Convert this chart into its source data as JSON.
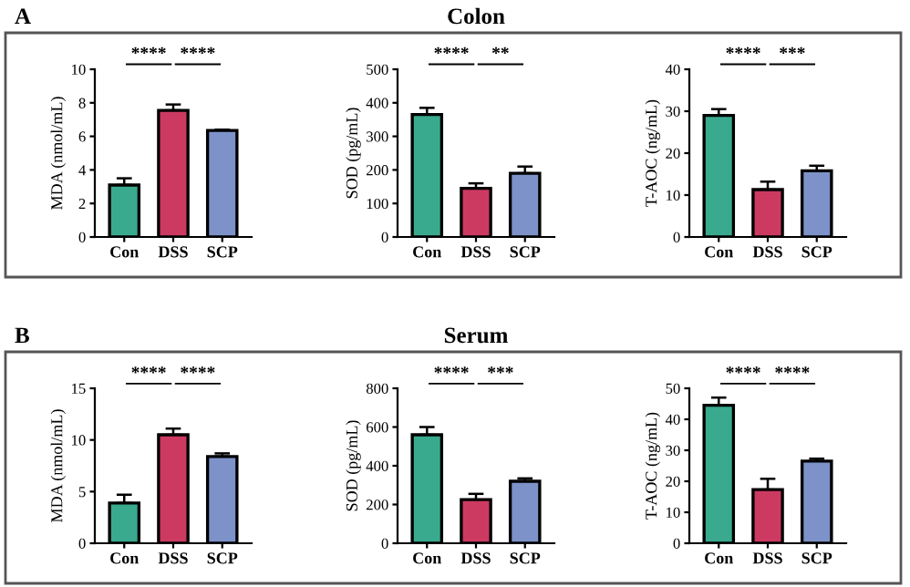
{
  "chart_data": [
    {
      "type": "bar",
      "annotations": [
        "A",
        "****",
        "****"
      ],
      "ylabel": "MDA (nmol/mL)",
      "categories": [
        "Con",
        "DSS",
        "SCP"
      ],
      "values": [
        3.1,
        7.55,
        6.35
      ],
      "errors": [
        [
          3.1,
          3.5
        ],
        [
          7.55,
          7.9
        ],
        [
          6.35,
          6.4
        ]
      ],
      "colors": [
        "#3aaa8f",
        "#cc3a62",
        "#7d92c8"
      ],
      "ylim": [
        0,
        10
      ],
      "yticks": [
        0,
        2,
        4,
        6,
        8,
        10
      ]
    },
    {
      "type": "bar",
      "title": "Colon",
      "annotations": [
        "****",
        "**"
      ],
      "ylabel": "SOD (pg/mL)",
      "categories": [
        "Con",
        "DSS",
        "SCP"
      ],
      "values": [
        365,
        145,
        190
      ],
      "errors": [
        [
          365,
          385
        ],
        [
          145,
          160
        ],
        [
          190,
          210
        ]
      ],
      "colors": [
        "#3aaa8f",
        "#cc3a62",
        "#7d92c8"
      ],
      "ylim": [
        0,
        500
      ],
      "yticks": [
        0,
        100,
        200,
        300,
        400,
        500
      ]
    },
    {
      "type": "bar",
      "annotations": [
        "****",
        "***"
      ],
      "ylabel": "T-AOC (ng/mL)",
      "categories": [
        "Con",
        "DSS",
        "SCP"
      ],
      "values": [
        29,
        11.3,
        15.8
      ],
      "errors": [
        [
          29,
          30.5
        ],
        [
          11.3,
          13.2
        ],
        [
          15.8,
          17
        ]
      ],
      "colors": [
        "#3aaa8f",
        "#cc3a62",
        "#7d92c8"
      ],
      "ylim": [
        0,
        40
      ],
      "yticks": [
        0,
        10,
        20,
        30,
        40
      ]
    },
    {
      "type": "bar",
      "annotations": [
        "B",
        "****",
        "****"
      ],
      "ylabel": "MDA (nmol/mL)",
      "categories": [
        "Con",
        "DSS",
        "SCP"
      ],
      "values": [
        3.9,
        10.5,
        8.4
      ],
      "errors": [
        [
          3.9,
          4.7
        ],
        [
          10.5,
          11.1
        ],
        [
          8.4,
          8.7
        ]
      ],
      "colors": [
        "#3aaa8f",
        "#cc3a62",
        "#7d92c8"
      ],
      "ylim": [
        0,
        15
      ],
      "yticks": [
        0,
        5,
        10,
        15
      ]
    },
    {
      "type": "bar",
      "title": "Serum",
      "annotations": [
        "****",
        "***"
      ],
      "ylabel": "SOD (pg/mL)",
      "categories": [
        "Con",
        "DSS",
        "SCP"
      ],
      "values": [
        560,
        225,
        320
      ],
      "errors": [
        [
          560,
          600
        ],
        [
          225,
          255
        ],
        [
          320,
          335
        ]
      ],
      "colors": [
        "#3aaa8f",
        "#cc3a62",
        "#7d92c8"
      ],
      "ylim": [
        0,
        800
      ],
      "yticks": [
        0,
        200,
        400,
        600,
        800
      ]
    },
    {
      "type": "bar",
      "annotations": [
        "****",
        "****"
      ],
      "ylabel": "T-AOC (ng/mL)",
      "categories": [
        "Con",
        "DSS",
        "SCP"
      ],
      "values": [
        44.5,
        17.3,
        26.5
      ],
      "errors": [
        [
          44.5,
          47
        ],
        [
          17.3,
          20.8
        ],
        [
          26.5,
          27.3
        ]
      ],
      "colors": [
        "#3aaa8f",
        "#cc3a62",
        "#7d92c8"
      ],
      "ylim": [
        0,
        50
      ],
      "yticks": [
        0,
        10,
        20,
        30,
        40,
        50
      ]
    }
  ]
}
